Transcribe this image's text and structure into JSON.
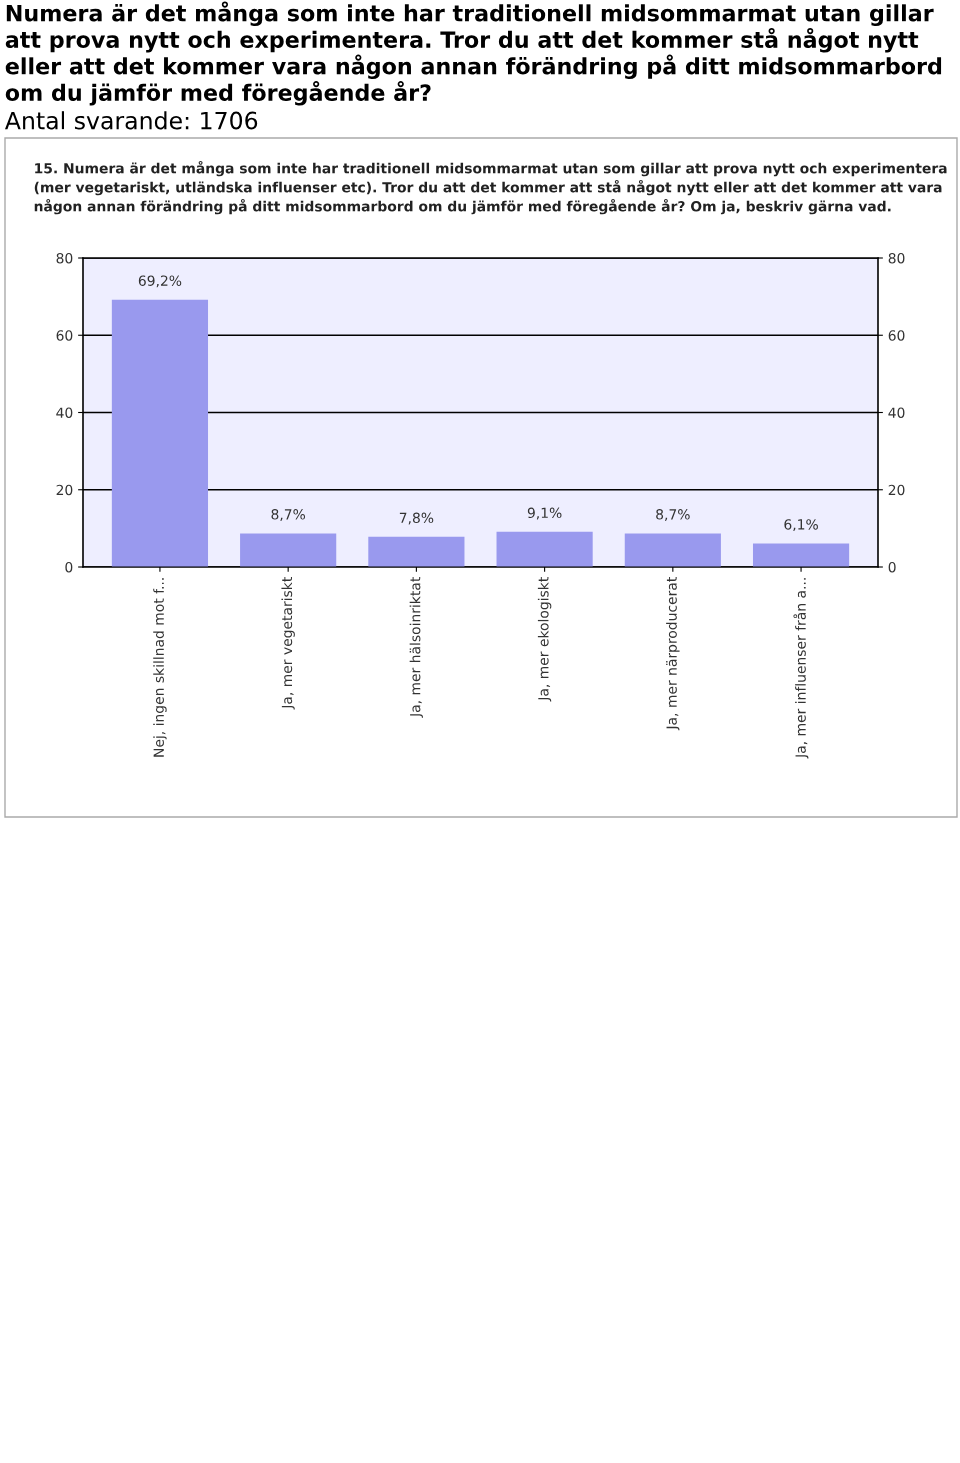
{
  "chart_data": {
    "type": "bar",
    "title": "Numera är det många som inte har traditionell midsommarmat utan gillar att prova nytt och experimentera. Tror du att det kommer stå något nytt eller att det kommer vara någon annan förändring på ditt midsommarbord om du jämför med föregående år?",
    "subtitle": "Antal svarande: 1706",
    "annotations": [
      "15. Numera är det många som inte har traditionell midsommarmat utan som gillar att prova nytt och experimentera (mer vegetariskt, utländska influenser etc). Tror du att det kommer att stå något nytt eller att det kommer att vara någon annan förändring på ditt midsommarbord om du jämför med föregående år? Om ja, beskriv gärna vad."
    ],
    "categories": [
      "Nej, ingen skillnad mot f...",
      "Ja, mer vegetariskt",
      "Ja, mer hälsoinriktat",
      "Ja, mer ekologiskt",
      "Ja, mer närproducerat",
      "Ja, mer influenser från a..."
    ],
    "values": [
      69.2,
      8.7,
      7.8,
      9.1,
      8.7,
      6.1
    ],
    "value_labels": [
      "69,2%",
      "8,7%",
      "7,8%",
      "9,1%",
      "8,7%",
      "6,1%"
    ],
    "color": "#9999ee",
    "ylim": [
      0,
      80
    ],
    "yticks": [
      0,
      20,
      40,
      60,
      80
    ],
    "y2lim": [
      0,
      80
    ],
    "y2ticks": [
      0,
      20,
      40,
      60,
      80
    ],
    "grid": "y",
    "legend": false
  }
}
